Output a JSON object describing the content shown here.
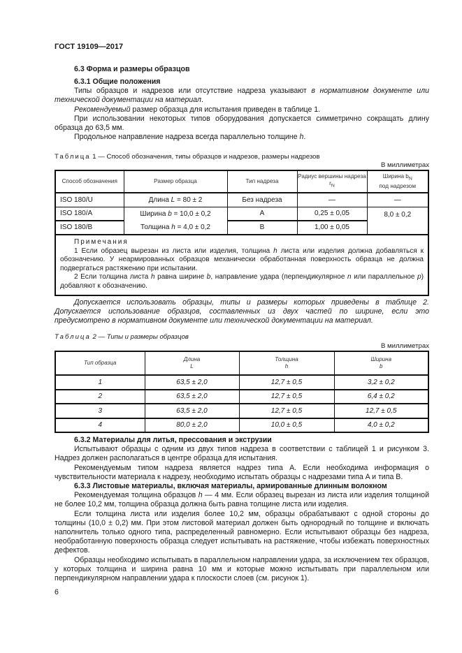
{
  "header": {
    "doc_id": "ГОСТ 19109—2017"
  },
  "s63": {
    "title": "6.3 Форма и размеры образцов"
  },
  "s631": {
    "title": "6.3.1 Общие положения",
    "p1a": "Типы образцов и надрезов или отсутствие надреза указывают ",
    "p1b": "в нормативном документе или технической документации на материал",
    ".": ".",
    "p2a": "Рекомендуемый",
    "p2b": " размер образца для испытания приведен в таблице 1.",
    "p3": "При использовании некоторых типов оборудования допускается симметрично сокращать длину образца до 63,5 мм.",
    "p4a": "Продольное направление надреза всегда параллельно толщине ",
    "p4b": "h",
    "p4c": "."
  },
  "table1": {
    "caption_word": "Таблица",
    "caption_rest": " 1 — Способ обозначения, типы образцов и надрезов, размеры надрезов",
    "units": "В миллиметрах",
    "headers": [
      "Способ обозначения",
      "Размер образца",
      "Тип надреза",
      "Радиус вершины надреза r",
      "Ширина b"
    ],
    "h3_sub": "N",
    "h4_sub": "N",
    "h4_tail": "под надрезом",
    "rows": [
      {
        "designation": "ISO 180/U",
        "size_label": "Длина ",
        "size_var": "L",
        "size_val": " = 80 ± 2",
        "notch": "Без надреза",
        "radius": "—",
        "width": "—"
      },
      {
        "designation": "ISO 180/A",
        "size_label": "Ширина ",
        "size_var": "b",
        "size_val": " = 10,0 ± 0,2",
        "notch": "A",
        "radius": "0,25 ± 0,05",
        "width": "8,0 ± 0,2"
      },
      {
        "designation": "ISO 180/B",
        "size_label": "Толщина ",
        "size_var": "h",
        "size_val": " = 4,0 ± 0,2",
        "notch": "B",
        "radius": "1,00 ± 0,05"
      }
    ],
    "notes_title": "Примечания",
    "note1a": "1 Если образец вырезан из листа или изделия, толщина ",
    "note1b": "h",
    "note1c": " листа или изделия должна добавляться к обозначению. У неармированных образцов механически обработанная поверхность образца не должна подвергаться растяжению при испытании.",
    "note2a": "2 Если толщина листа ",
    "note2b": "h",
    "note2c": " равна ширине ",
    "note2d": "b",
    "note2e": ", направление удара (перпендикулярное ",
    "note2f": "n",
    "note2g": " или параллельное ",
    "note2h": "p",
    "note2i": ") добавляют к обозначению."
  },
  "italic_para": "Допускается использовать образцы, типы и размеры которых приведены в таблице 2. Допускается использование образцов, составленных из двух частей по ширине, если это предусмотрено в нормативном документе или технической документации на материал.",
  "table2": {
    "caption_word": "Таблица",
    "caption_rest": " 2 — Типы и размеры образцов",
    "units": "В миллиметрах",
    "headers": [
      {
        "l1": "Тип образца",
        "l2": ""
      },
      {
        "l1": "Длина",
        "l2": "L"
      },
      {
        "l1": "Толщина",
        "l2": "h"
      },
      {
        "l1": "Ширина",
        "l2": "b"
      }
    ],
    "rows": [
      [
        "1",
        "63,5 ± 2,0",
        "12,7 ± 0,5",
        "3,2 ± 0,2"
      ],
      [
        "2",
        "63,5 ± 2,0",
        "12,7 ± 0,5",
        "6,4 ± 0,2"
      ],
      [
        "3",
        "63,5 ± 2,0",
        "12,7 ± 0,5",
        "12,7 ± 0,5"
      ],
      [
        "4",
        "80,0 ± 2,0",
        "10,0 ± 0,5",
        "4,0 ± 0,2"
      ]
    ]
  },
  "s632": {
    "title": "6.3.2 Материалы для литья, прессования и экструзии",
    "p1": "Испытывают образцы с одним из двух типов надреза в соответствии с таблицей 1 и рисунком 3. Надрез должен располагаться в центре образца для испытания.",
    "p2": "Рекомендуемым типом надреза является надрез типа A. Если необходима информация о чувствительности материала к надрезу, необходимо испытать образцы с надрезами типа A и типа B."
  },
  "s633": {
    "title": "6.3.3 Листовые материалы, включая материалы, армированные длинным волокном",
    "p1a": "Рекомендуемая толщина образцов ",
    "p1b": "h",
    "p1c": " — 4 мм. Если образец вырезан из листа или изделия толщиной не более 10,2 мм, толщина образца должна быть равна толщине листа или изделия.",
    "p2": "Если толщина листа или изделия более 10,2 мм, образцы обрабатывают с одной стороны до толщины (10,0 ± 0,2) мм. При этом листовой материал должен быть однородный по толщине и включать наполнитель только одного типа, распределенный равномерно. Если испытывают образцы без надреза, необработанную поверхность образца следует испытывать на растяжение, чтобы избежать поверхностных дефектов.",
    "p3": "Образцы необходимо испытывать в параллельном направлении удара, за исключением тех образцов, у которых толщина и ширина равна 10 мм и которые можно испытывать при параллельном или перпендикулярном направлении удара к плоскости слоев (см. рисунок 1)."
  },
  "footer": {
    "page_number": "6"
  }
}
